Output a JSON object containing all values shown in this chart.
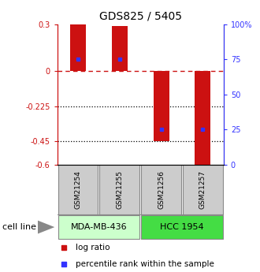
{
  "title": "GDS825 / 5405",
  "samples": [
    "GSM21254",
    "GSM21255",
    "GSM21256",
    "GSM21257"
  ],
  "log_ratios": [
    0.3,
    0.29,
    -0.45,
    -0.6
  ],
  "percentile_ranks": [
    75,
    75,
    25,
    25
  ],
  "ylim_left": [
    -0.6,
    0.3
  ],
  "ylim_right": [
    0,
    100
  ],
  "yticks_left": [
    -0.6,
    -0.45,
    -0.225,
    0,
    0.3
  ],
  "ytick_labels_left": [
    "-0.6",
    "-0.45",
    "-0.225",
    "0",
    "0.3"
  ],
  "yticks_right": [
    0,
    25,
    50,
    75,
    100
  ],
  "ytick_labels_right": [
    "0",
    "25",
    "50",
    "75",
    "100%"
  ],
  "hline_zero": 0,
  "hlines_dotted": [
    -0.225,
    -0.45
  ],
  "bar_color": "#cc1111",
  "dot_color": "#3333ff",
  "bar_width": 0.38,
  "cell_lines": [
    {
      "label": "MDA-MB-436",
      "samples": [
        0,
        1
      ],
      "color": "#ccffcc"
    },
    {
      "label": "HCC 1954",
      "samples": [
        2,
        3
      ],
      "color": "#44dd44"
    }
  ],
  "sample_box_color": "#cccccc",
  "sample_box_edge": "#888888",
  "legend_log_ratio_color": "#cc1111",
  "legend_pct_color": "#3333ff",
  "xlabel_cell_line": "cell line",
  "background_color": "#ffffff",
  "fig_width": 3.3,
  "fig_height": 3.45,
  "dpi": 100
}
